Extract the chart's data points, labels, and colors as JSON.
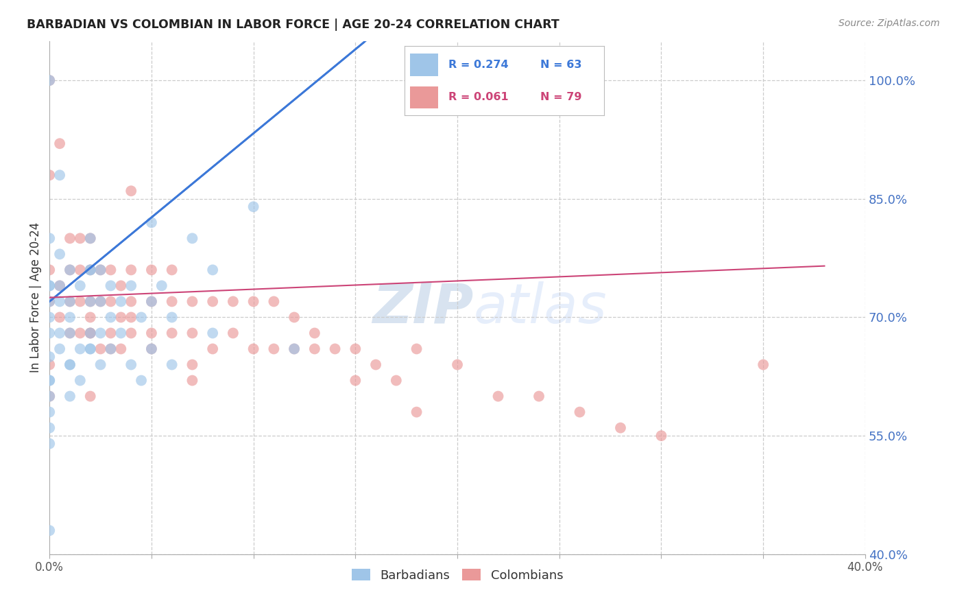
{
  "title": "BARBADIAN VS COLOMBIAN IN LABOR FORCE | AGE 20-24 CORRELATION CHART",
  "source": "Source: ZipAtlas.com",
  "ylabel": "In Labor Force | Age 20-24",
  "xlim": [
    0.0,
    0.4
  ],
  "ylim": [
    0.4,
    1.05
  ],
  "right_yticks": [
    1.0,
    0.85,
    0.7,
    0.55,
    0.4
  ],
  "right_yticklabels": [
    "100.0%",
    "85.0%",
    "70.0%",
    "55.0%",
    "40.0%"
  ],
  "xtick_vals": [
    0.0,
    0.05,
    0.1,
    0.15,
    0.2,
    0.25,
    0.3,
    0.35,
    0.4
  ],
  "blue_color": "#9fc5e8",
  "pink_color": "#ea9999",
  "trendline_blue_color": "#3c78d8",
  "trendline_pink_color": "#cc4477",
  "watermark": "ZIPatlas",
  "blue_trendline": [
    [
      0.0,
      0.72
    ],
    [
      0.155,
      1.05
    ]
  ],
  "pink_trendline": [
    [
      0.0,
      0.725
    ],
    [
      0.38,
      0.765
    ]
  ],
  "barbadian_x": [
    0.0,
    0.0,
    0.0,
    0.0,
    0.0,
    0.0,
    0.0,
    0.0,
    0.0,
    0.0,
    0.005,
    0.005,
    0.005,
    0.005,
    0.005,
    0.005,
    0.01,
    0.01,
    0.01,
    0.01,
    0.01,
    0.015,
    0.015,
    0.015,
    0.02,
    0.02,
    0.02,
    0.02,
    0.02,
    0.025,
    0.025,
    0.025,
    0.025,
    0.03,
    0.03,
    0.03,
    0.035,
    0.035,
    0.04,
    0.04,
    0.045,
    0.045,
    0.05,
    0.05,
    0.055,
    0.06,
    0.06,
    0.07,
    0.08,
    0.08,
    0.1,
    0.12,
    0.0,
    0.0,
    0.0,
    0.0,
    0.0,
    0.01,
    0.01,
    0.02,
    0.02,
    0.05
  ],
  "barbadian_y": [
    0.43,
    0.54,
    0.56,
    0.58,
    0.62,
    0.65,
    0.68,
    0.74,
    0.8,
    1.0,
    0.66,
    0.68,
    0.72,
    0.74,
    0.78,
    0.88,
    0.6,
    0.64,
    0.68,
    0.72,
    0.76,
    0.62,
    0.66,
    0.74,
    0.66,
    0.68,
    0.72,
    0.76,
    0.8,
    0.64,
    0.68,
    0.72,
    0.76,
    0.66,
    0.7,
    0.74,
    0.68,
    0.72,
    0.64,
    0.74,
    0.62,
    0.7,
    0.66,
    0.72,
    0.74,
    0.64,
    0.7,
    0.8,
    0.68,
    0.76,
    0.84,
    0.66,
    0.6,
    0.62,
    0.7,
    0.72,
    0.74,
    0.64,
    0.7,
    0.66,
    0.76,
    0.82
  ],
  "colombian_x": [
    0.0,
    0.0,
    0.0,
    0.0,
    0.005,
    0.005,
    0.005,
    0.01,
    0.01,
    0.01,
    0.01,
    0.015,
    0.015,
    0.015,
    0.015,
    0.02,
    0.02,
    0.02,
    0.02,
    0.02,
    0.025,
    0.025,
    0.025,
    0.03,
    0.03,
    0.03,
    0.03,
    0.035,
    0.035,
    0.035,
    0.04,
    0.04,
    0.04,
    0.04,
    0.05,
    0.05,
    0.05,
    0.05,
    0.06,
    0.06,
    0.06,
    0.07,
    0.07,
    0.07,
    0.08,
    0.08,
    0.09,
    0.09,
    0.1,
    0.1,
    0.11,
    0.11,
    0.12,
    0.12,
    0.13,
    0.13,
    0.14,
    0.15,
    0.15,
    0.16,
    0.17,
    0.18,
    0.18,
    0.2,
    0.22,
    0.24,
    0.26,
    0.28,
    0.3,
    0.0,
    0.0,
    0.02,
    0.02,
    0.04,
    0.07,
    0.35
  ],
  "colombian_y": [
    0.72,
    0.76,
    0.88,
    1.0,
    0.7,
    0.74,
    0.92,
    0.68,
    0.72,
    0.76,
    0.8,
    0.68,
    0.72,
    0.76,
    0.8,
    0.68,
    0.7,
    0.72,
    0.76,
    0.8,
    0.66,
    0.72,
    0.76,
    0.66,
    0.68,
    0.72,
    0.76,
    0.66,
    0.7,
    0.74,
    0.68,
    0.7,
    0.72,
    0.76,
    0.66,
    0.68,
    0.72,
    0.76,
    0.68,
    0.72,
    0.76,
    0.64,
    0.68,
    0.72,
    0.66,
    0.72,
    0.68,
    0.72,
    0.66,
    0.72,
    0.66,
    0.72,
    0.66,
    0.7,
    0.66,
    0.68,
    0.66,
    0.62,
    0.66,
    0.64,
    0.62,
    0.58,
    0.66,
    0.64,
    0.6,
    0.6,
    0.58,
    0.56,
    0.55,
    0.6,
    0.64,
    0.6,
    0.68,
    0.86,
    0.62,
    0.64
  ]
}
